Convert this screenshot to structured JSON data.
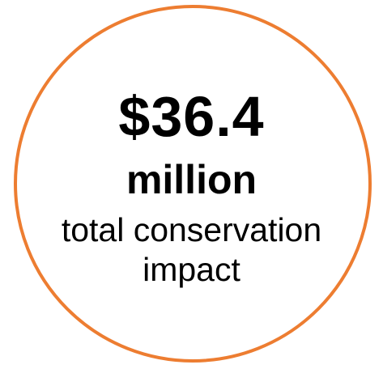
{
  "stat": {
    "amount": "$36.4",
    "unit": "million",
    "caption_line_1": "total conservation",
    "caption_line_2": "impact"
  },
  "colors": {
    "ring": "#ED7D31",
    "text": "#000000",
    "background": "#FFFFFF"
  }
}
